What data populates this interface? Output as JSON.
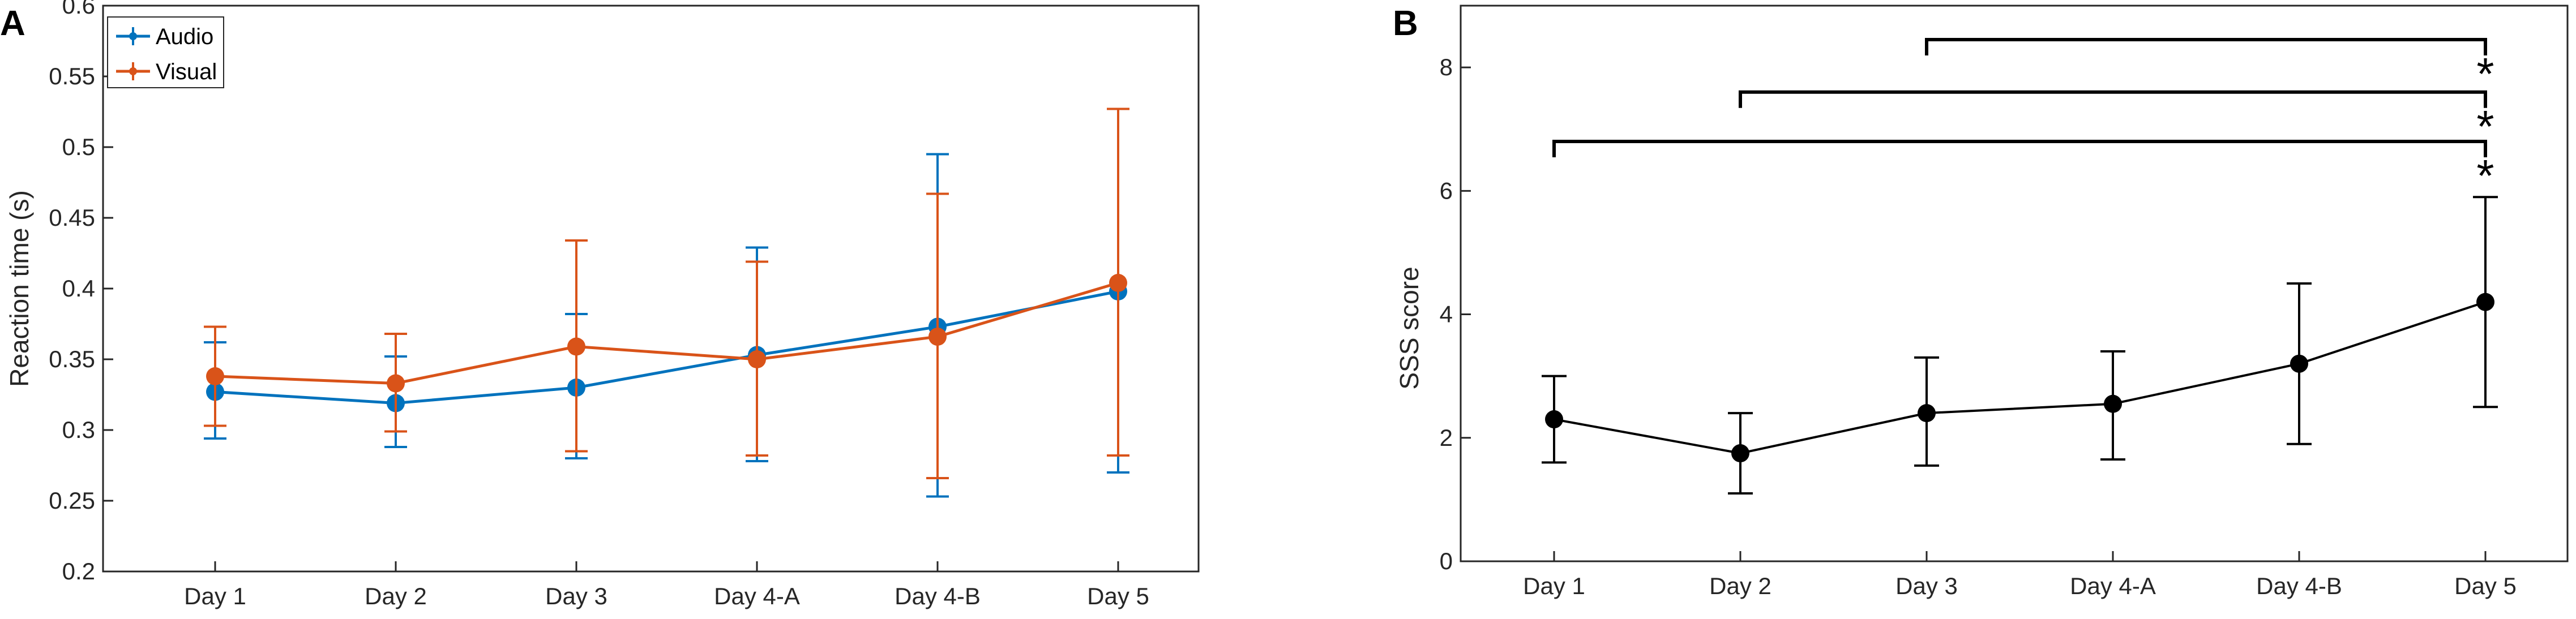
{
  "chart_data": [
    {
      "panel_label": "A",
      "type": "line",
      "categories": [
        "Day 1",
        "Day 2",
        "Day 3",
        "Day 4-A",
        "Day 4-B",
        "Day 5"
      ],
      "ylabel": "Reaction time (s)",
      "xlabel": "",
      "ylim": [
        0.2,
        0.6
      ],
      "yticks": [
        "0.2",
        "0.25",
        "0.3",
        "0.35",
        "0.4",
        "0.45",
        "0.5",
        "0.55",
        "0.6"
      ],
      "legend_position": "top-left",
      "series": [
        {
          "name": "Audio",
          "color": "#0072BD",
          "values": [
            0.327,
            0.319,
            0.33,
            0.353,
            0.373,
            0.398
          ],
          "err_low": [
            0.294,
            0.288,
            0.28,
            0.278,
            0.253,
            0.27
          ],
          "err_high": [
            0.362,
            0.352,
            0.382,
            0.429,
            0.495,
            0.527
          ]
        },
        {
          "name": "Visual",
          "color": "#D95319",
          "values": [
            0.338,
            0.333,
            0.359,
            0.35,
            0.366,
            0.404
          ],
          "err_low": [
            0.303,
            0.299,
            0.285,
            0.282,
            0.266,
            0.282
          ],
          "err_high": [
            0.373,
            0.368,
            0.434,
            0.419,
            0.467,
            0.527
          ]
        }
      ]
    },
    {
      "panel_label": "B",
      "type": "line",
      "categories": [
        "Day 1",
        "Day 2",
        "Day 3",
        "Day 4-A",
        "Day 4-B",
        "Day 5"
      ],
      "ylabel": "SSS score",
      "xlabel": "",
      "ylim": [
        0,
        9
      ],
      "yticks": [
        "0",
        "2",
        "4",
        "6",
        "8"
      ],
      "series": [
        {
          "name": "SSS",
          "color": "#000000",
          "values": [
            2.3,
            1.75,
            2.4,
            2.55,
            3.2,
            4.2
          ],
          "err_low": [
            1.6,
            1.1,
            1.55,
            1.65,
            1.9,
            2.5
          ],
          "err_high": [
            3.0,
            2.4,
            3.3,
            3.4,
            4.5,
            5.9
          ]
        }
      ],
      "significance": [
        {
          "from": "Day 3",
          "to": "Day 5",
          "y": 8.45,
          "label": "*"
        },
        {
          "from": "Day 2",
          "to": "Day 5",
          "y": 7.6,
          "label": "*"
        },
        {
          "from": "Day 1",
          "to": "Day 5",
          "y": 6.8,
          "label": "*"
        }
      ]
    }
  ]
}
